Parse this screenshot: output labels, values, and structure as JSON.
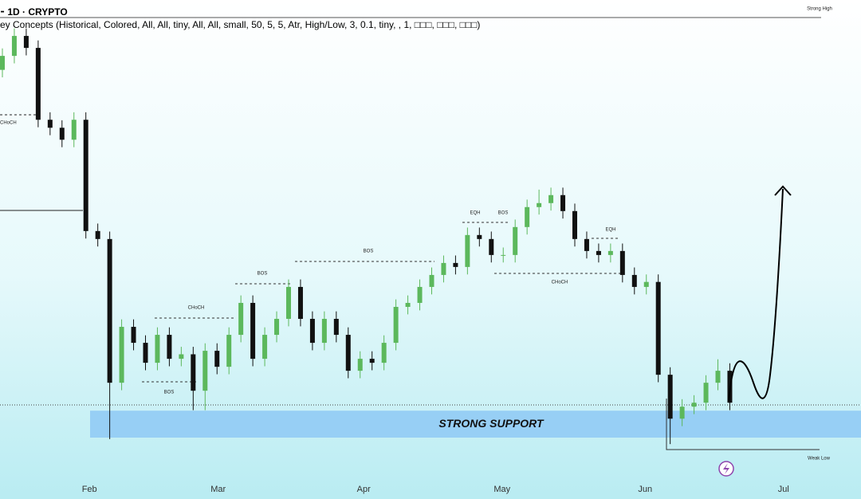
{
  "chart_data": {
    "type": "candlestick",
    "header": "⁃ 1D · CRYPTO",
    "indicator": "ey Concepts (Historical, Colored, All, All, tiny, All, All, small, 50, 5, 5, Atr, High/Low, 3, 0.1, tiny, , 1, □□□, □□□, □□□)",
    "up_color": "#5cb85c",
    "down_color": "#111111",
    "xlim": [
      -0.2,
      72
    ],
    "ylim": [
      0,
      100
    ],
    "xticks": [
      {
        "value": 7.3,
        "label": "Feb"
      },
      {
        "value": 18.1,
        "label": "Mar"
      },
      {
        "value": 30.3,
        "label": "Apr"
      },
      {
        "value": 41.9,
        "label": "May"
      },
      {
        "value": 53.9,
        "label": "Jun"
      },
      {
        "value": 65.5,
        "label": "Jul"
      }
    ],
    "open": [
      86.0,
      88.8,
      92.8,
      90.4,
      76.0,
      74.4,
      72.0,
      76.0,
      53.7,
      52.1,
      23.3,
      34.5,
      31.3,
      27.3,
      32.9,
      28.1,
      29.0,
      21.7,
      29.7,
      26.5,
      32.9,
      39.3,
      28.1,
      32.9,
      36.1,
      42.5,
      36.1,
      31.3,
      36.1,
      32.9,
      25.7,
      28.1,
      27.3,
      31.3,
      38.5,
      39.3,
      42.5,
      44.9,
      47.3,
      46.5,
      52.9,
      52.1,
      48.9,
      48.9,
      54.5,
      58.5,
      59.3,
      60.9,
      57.7,
      52.1,
      49.7,
      48.9,
      49.7,
      44.9,
      42.5,
      43.5,
      24.9,
      16.1,
      18.5,
      19.3,
      23.3,
      25.7
    ],
    "high": [
      90.3,
      94.3,
      94.3,
      91.9,
      77.5,
      75.9,
      77.5,
      77.5,
      55.2,
      53.6,
      36.0,
      36.0,
      32.8,
      34.4,
      34.4,
      30.5,
      30.5,
      31.2,
      31.2,
      34.4,
      40.8,
      40.8,
      34.4,
      37.6,
      44.0,
      44.0,
      37.6,
      37.6,
      37.6,
      34.4,
      29.6,
      29.6,
      32.8,
      40.0,
      40.8,
      44.0,
      46.4,
      48.8,
      48.8,
      54.4,
      54.4,
      53.6,
      50.4,
      56.0,
      60.0,
      62.0,
      62.4,
      62.4,
      59.2,
      53.6,
      51.2,
      51.2,
      51.2,
      46.4,
      45.0,
      45.0,
      26.4,
      20.0,
      20.8,
      24.8,
      28.0,
      27.2
    ],
    "low": [
      84.5,
      87.3,
      88.9,
      74.5,
      72.9,
      70.5,
      70.5,
      52.2,
      50.6,
      12.0,
      21.8,
      29.8,
      25.8,
      25.8,
      26.6,
      26.6,
      17.8,
      17.8,
      25.0,
      25.0,
      31.4,
      26.6,
      26.6,
      31.4,
      34.6,
      34.6,
      29.8,
      29.8,
      31.4,
      24.2,
      24.2,
      25.8,
      25.8,
      29.8,
      37.0,
      37.8,
      41.0,
      43.4,
      45.0,
      45.0,
      50.6,
      47.4,
      47.4,
      47.4,
      53.0,
      57.0,
      57.8,
      56.2,
      50.6,
      48.2,
      47.4,
      47.4,
      43.4,
      41.0,
      41.0,
      23.4,
      11.0,
      14.6,
      17.0,
      17.8,
      21.8,
      17.8
    ],
    "close": [
      88.8,
      92.8,
      90.4,
      76.0,
      74.4,
      72.0,
      76.0,
      53.7,
      52.1,
      23.3,
      34.5,
      31.3,
      27.3,
      32.9,
      28.1,
      29.0,
      21.7,
      29.7,
      26.5,
      32.9,
      39.3,
      28.1,
      32.9,
      36.1,
      42.5,
      36.1,
      31.3,
      36.1,
      32.9,
      25.7,
      28.1,
      27.3,
      31.3,
      38.5,
      39.3,
      42.5,
      44.9,
      47.3,
      46.5,
      52.9,
      52.1,
      48.9,
      48.9,
      54.5,
      58.5,
      59.3,
      60.9,
      57.7,
      52.1,
      49.7,
      48.9,
      49.7,
      44.9,
      42.5,
      43.5,
      24.9,
      16.1,
      18.5,
      19.3,
      23.3,
      25.7,
      19.3
    ],
    "support_zone": [
      12.3,
      17.7
    ],
    "support_label": "STRONG SUPPORT",
    "annotations": [
      "CHoCH",
      "CHoCH",
      "BOS",
      "BOS",
      "BOS",
      "EQH",
      "BOS",
      "CHoCH",
      "EQH",
      "Strong High",
      "Weak Low"
    ]
  }
}
